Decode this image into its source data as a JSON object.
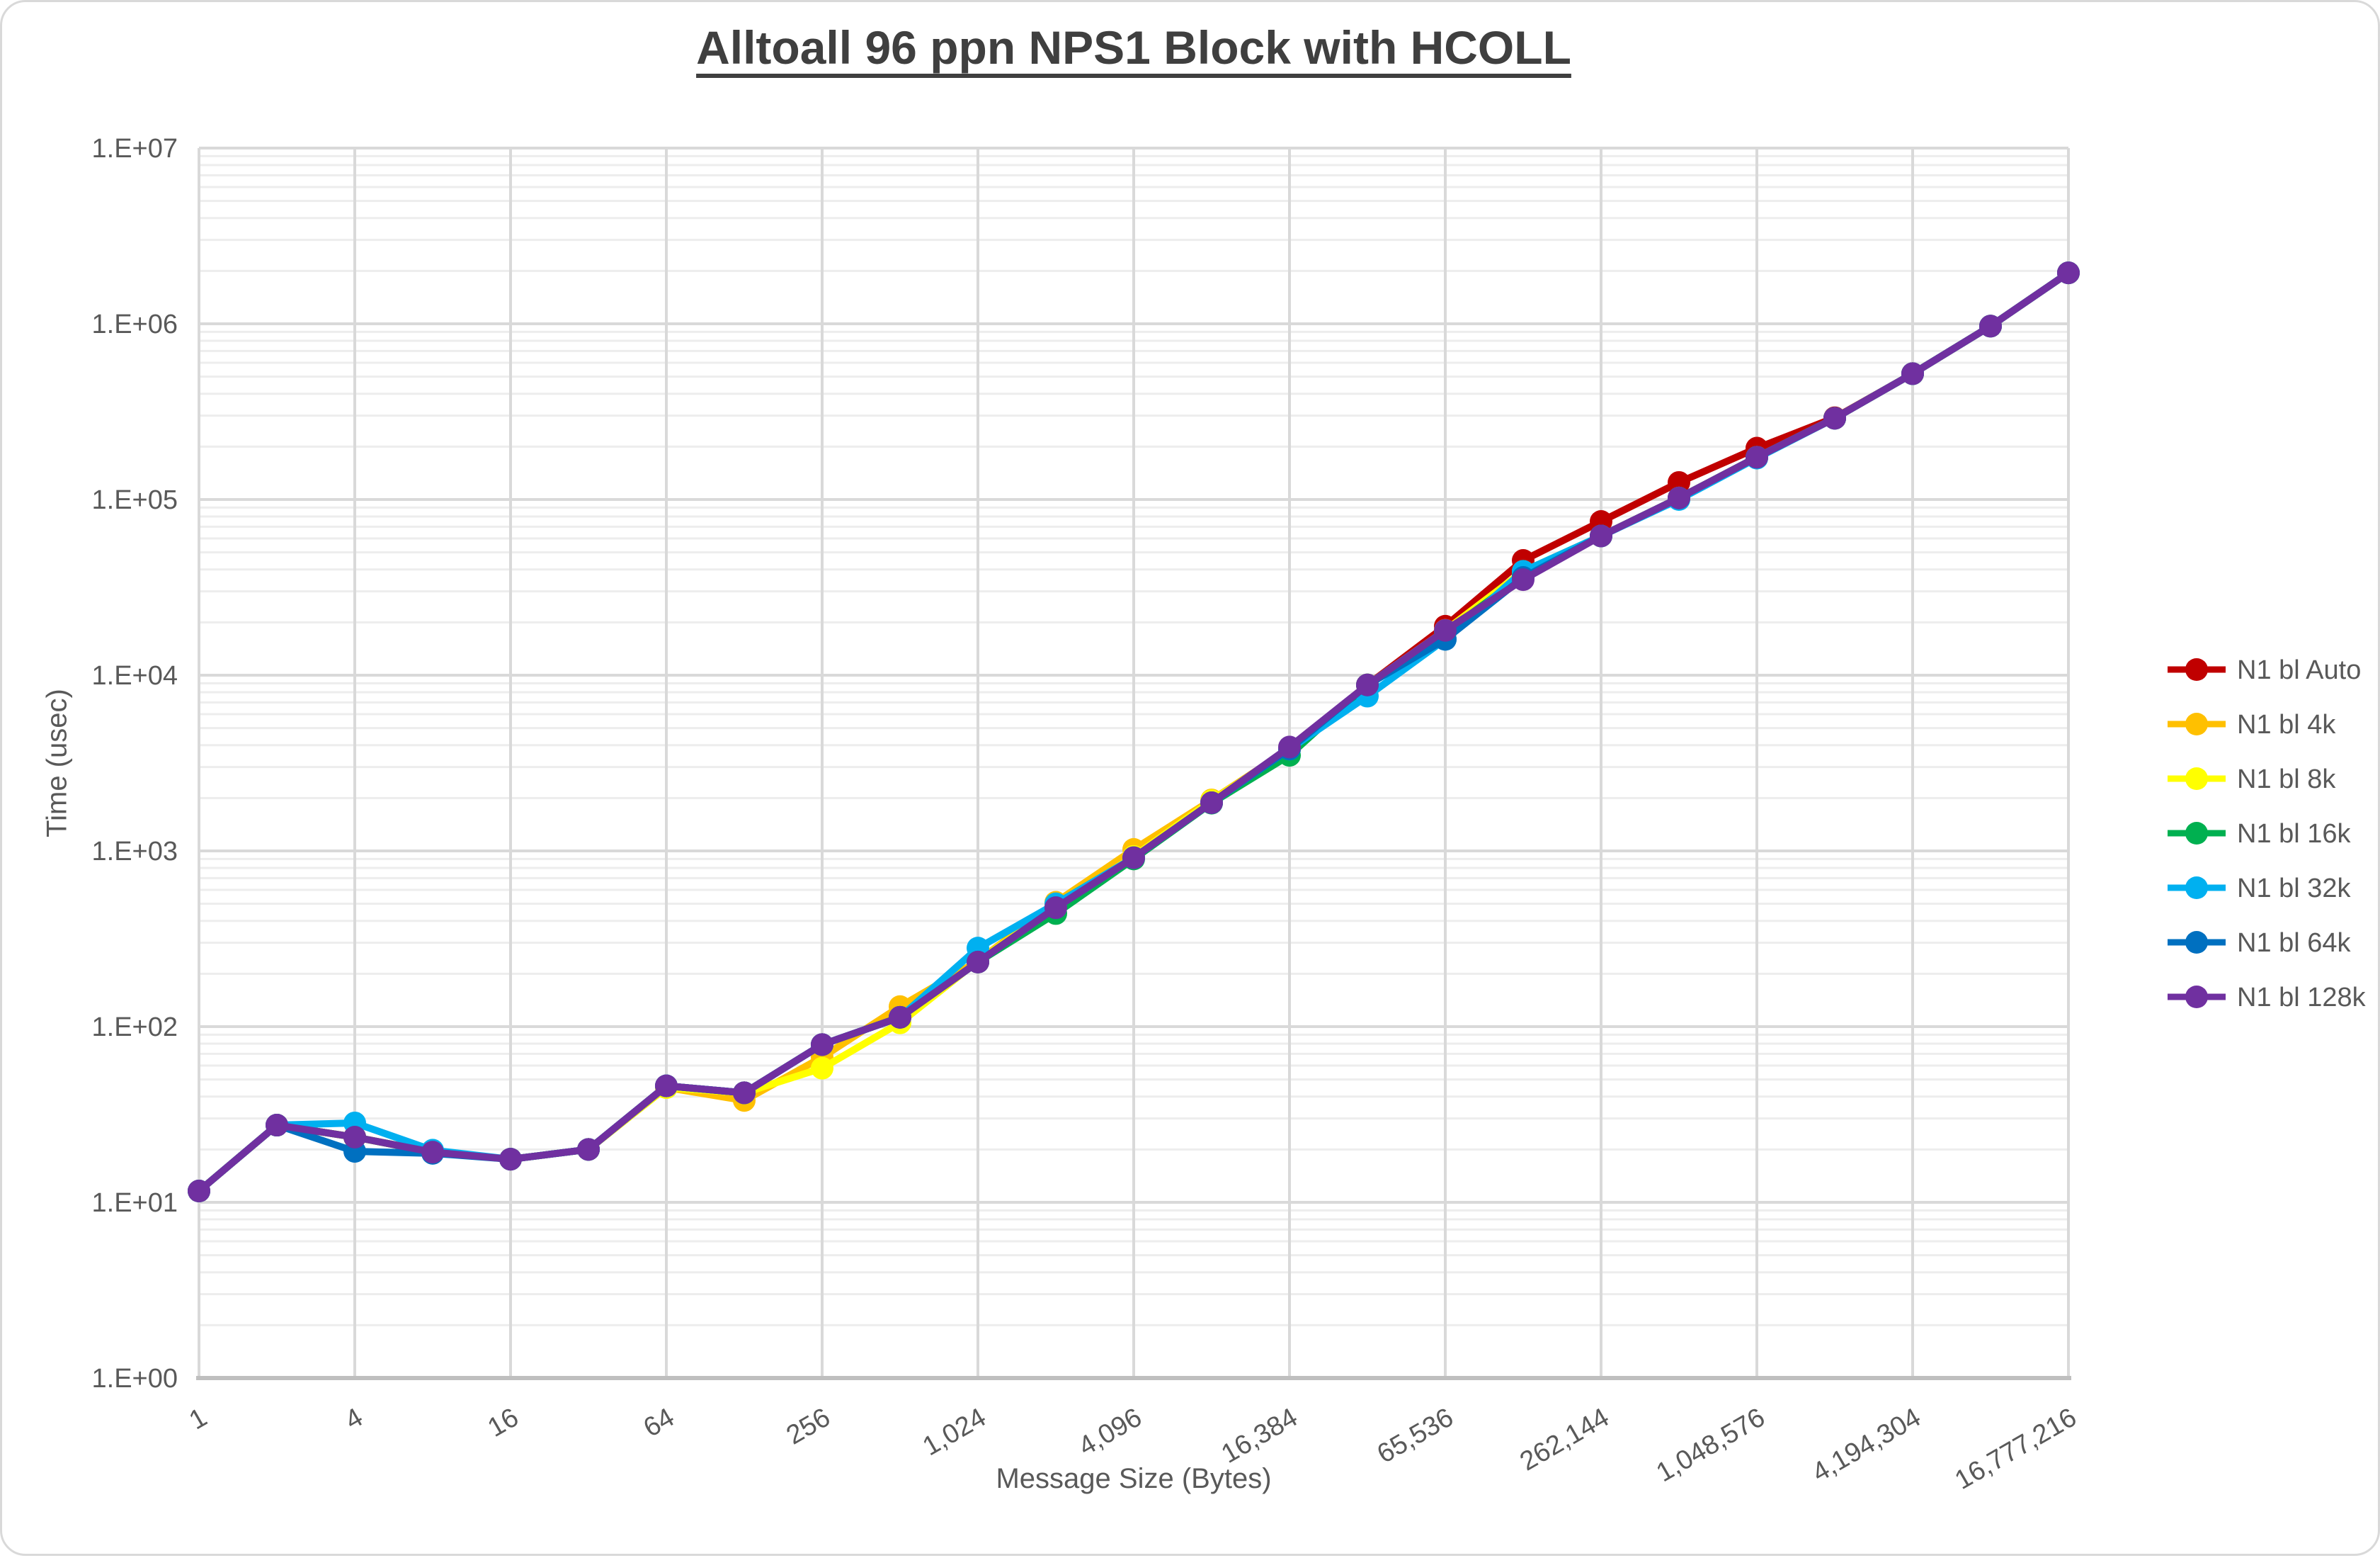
{
  "chart": {
    "title": "Alltoall 96 ppn NPS1 Block with HCOLL",
    "xlabel": "Message Size (Bytes)",
    "ylabel": "Time (usec)"
  },
  "chart_data": {
    "type": "line",
    "title": "Alltoall 96 ppn NPS1 Block with HCOLL",
    "xlabel": "Message Size (Bytes)",
    "ylabel": "Time (usec)",
    "x_scale": "log2",
    "y_scale": "log10",
    "xlim": [
      1,
      16777216
    ],
    "ylim": [
      1,
      10000000
    ],
    "grid": "on",
    "legend_position": "right",
    "x": [
      1,
      2,
      4,
      8,
      16,
      32,
      64,
      128,
      256,
      512,
      1024,
      2048,
      4096,
      8192,
      16384,
      32768,
      65536,
      131072,
      262144,
      524288,
      1048576,
      2097152,
      4194304,
      8388608,
      16777216
    ],
    "x_tick_values": [
      1,
      4,
      16,
      64,
      256,
      1024,
      4096,
      16384,
      65536,
      262144,
      1048576,
      4194304,
      16777216
    ],
    "x_tick_labels": [
      "1",
      "4",
      "16",
      "64",
      "256",
      "1,024",
      "4,096",
      "16,384",
      "65,536",
      "262,144",
      "1,048,576",
      "4,194,304",
      "16,777,216"
    ],
    "y_tick_values": [
      1,
      10,
      100,
      1000,
      10000,
      100000,
      1000000,
      10000000
    ],
    "y_tick_labels": [
      "1.E+00",
      "1.E+01",
      "1.E+02",
      "1.E+03",
      "1.E+04",
      "1.E+05",
      "1.E+06",
      "1.E+07"
    ],
    "series": [
      {
        "name": "N1 bl Auto",
        "color": "#C00000",
        "values": [
          11.6,
          27.5,
          23.5,
          19.3,
          17.6,
          20,
          46,
          42,
          79,
          113,
          233,
          475,
          915,
          1880,
          3800,
          8800,
          19000,
          45000,
          75000,
          125000,
          196000,
          292000,
          520000,
          970000,
          1950000
        ]
      },
      {
        "name": "N1 bl 4k",
        "color": "#FFC000",
        "values": [
          11.6,
          27.5,
          23.5,
          19.3,
          17.6,
          20,
          45,
          38,
          67,
          130,
          236,
          510,
          1020,
          1950,
          3800,
          8800,
          18000,
          38000,
          62000,
          102000,
          174000,
          290000,
          520000,
          970000,
          1950000
        ]
      },
      {
        "name": "N1 bl 8k",
        "color": "#FFFF00",
        "values": [
          11.6,
          27.5,
          23.5,
          19.3,
          17.6,
          20,
          45,
          42,
          58,
          105,
          236,
          480,
          930,
          1930,
          3800,
          8800,
          18000,
          39000,
          62000,
          102000,
          174000,
          290000,
          520000,
          970000,
          1950000
        ]
      },
      {
        "name": "N1 bl 16k",
        "color": "#00B050",
        "values": [
          11.6,
          27.5,
          23.5,
          19.3,
          17.6,
          20,
          46,
          42,
          79,
          113,
          233,
          440,
          900,
          1870,
          3500,
          8800,
          17500,
          37000,
          62000,
          102000,
          174000,
          290000,
          520000,
          970000,
          1950000
        ]
      },
      {
        "name": "N1 bl 32k",
        "color": "#00B0F0",
        "values": [
          11.6,
          27.5,
          28.3,
          19.8,
          17.6,
          20,
          46,
          42,
          79,
          113,
          280,
          500,
          915,
          1880,
          3800,
          7600,
          16000,
          39000,
          62000,
          100000,
          172000,
          290000,
          520000,
          970000,
          1950000
        ]
      },
      {
        "name": "N1 bl 64k",
        "color": "#0070C0",
        "values": [
          11.6,
          27.5,
          19.5,
          19.0,
          17.6,
          20,
          46,
          42,
          79,
          113,
          233,
          475,
          915,
          1880,
          3800,
          8800,
          16000,
          36000,
          62000,
          102000,
          174000,
          290000,
          520000,
          970000,
          1950000
        ]
      },
      {
        "name": "N1 bl 128k",
        "color": "#7030A0",
        "values": [
          11.6,
          27.5,
          23.5,
          19.3,
          17.6,
          20,
          46,
          42,
          79,
          113,
          233,
          475,
          915,
          1880,
          3900,
          8800,
          18000,
          35000,
          62000,
          102000,
          174000,
          290000,
          520000,
          970000,
          1950000
        ]
      }
    ]
  }
}
